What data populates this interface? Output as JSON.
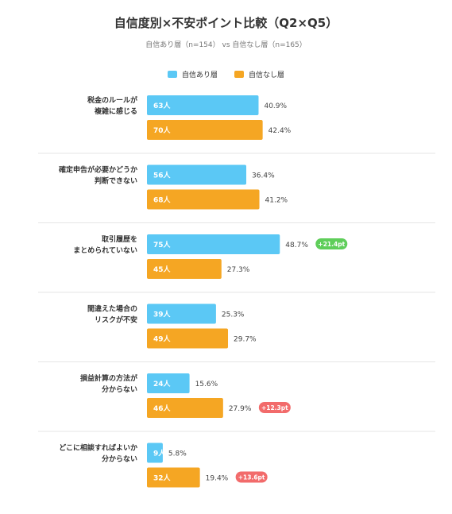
{
  "chart_data": {
    "type": "bar",
    "orientation": "horizontal",
    "title": "自信度別×不安ポイント比較（Q2×Q5）",
    "subtitle": "自信あり層（n=154） vs 自信なし層（n=165）",
    "legend_position": "top",
    "categories": [
      [
        "税金のルールが",
        "複雑に感じる"
      ],
      [
        "確定申告が必要かどうか",
        "判断できない"
      ],
      [
        "取引履歴を",
        "まとめられていない"
      ],
      [
        "間違えた場合の",
        "リスクが不安"
      ],
      [
        "損益計算の方法が",
        "分からない"
      ],
      [
        "どこに相談すればよいか",
        "分からない"
      ]
    ],
    "series": [
      {
        "name": "自信あり層",
        "color": "#5bc8f5",
        "counts": [
          "63人",
          "56人",
          "75人",
          "39人",
          "24人",
          "9人"
        ],
        "values": [
          40.9,
          36.4,
          48.7,
          25.3,
          15.6,
          5.8
        ],
        "labels": [
          "40.9%",
          "36.4%",
          "48.7%",
          "25.3%",
          "15.6%",
          "5.8%"
        ]
      },
      {
        "name": "自信なし層",
        "color": "#f5a623",
        "counts": [
          "70人",
          "68人",
          "45人",
          "49人",
          "46人",
          "32人"
        ],
        "values": [
          42.4,
          41.2,
          27.3,
          29.7,
          27.9,
          19.4
        ],
        "labels": [
          "42.4%",
          "41.2%",
          "27.3%",
          "29.7%",
          "27.9%",
          "19.4%"
        ]
      }
    ],
    "badges": [
      {
        "category_index": 2,
        "series_index": 0,
        "text": "+21.4pt",
        "color": "#5fce5a"
      },
      {
        "category_index": 4,
        "series_index": 1,
        "text": "+12.3pt",
        "color": "#f26b6b"
      },
      {
        "category_index": 5,
        "series_index": 1,
        "text": "+13.6pt",
        "color": "#f26b6b"
      }
    ],
    "xlim": [
      0,
      100
    ],
    "grid": false,
    "colors": {
      "divider": "#e5e5e5",
      "count_text": "#ffffff",
      "value_text": "#444444"
    }
  }
}
